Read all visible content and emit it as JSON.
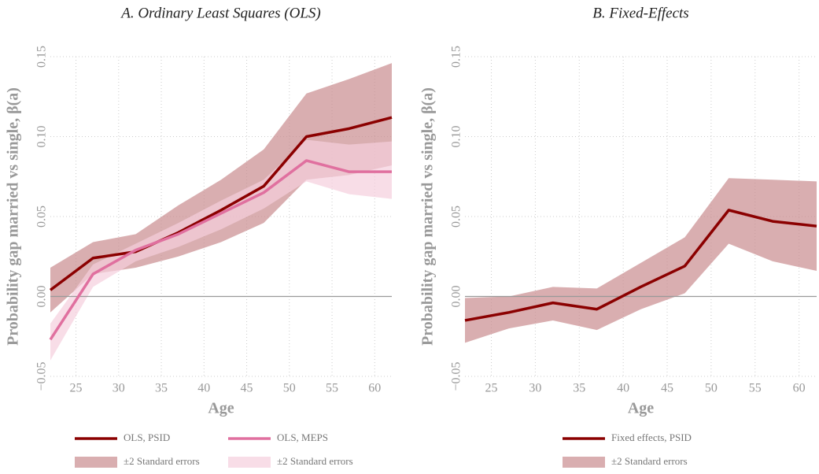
{
  "chart_data": [
    {
      "type": "line",
      "title": "A. Ordinary Least Squares (OLS)",
      "xlabel": "Age",
      "ylabel": "Probability gap married vs single, β(a)",
      "x": [
        22,
        27,
        32,
        37,
        42,
        47,
        52,
        57,
        62
      ],
      "series": [
        {
          "name": "OLS, PSID",
          "color": "#8b0000",
          "values": [
            0.004,
            0.024,
            0.028,
            0.04,
            0.054,
            0.069,
            0.1,
            0.105,
            0.112
          ],
          "band": {
            "name": "±2 Standard errors",
            "color": "#c98b8e",
            "upper": [
              0.018,
              0.034,
              0.039,
              0.057,
              0.073,
              0.092,
              0.127,
              0.136,
              0.146
            ],
            "lower": [
              -0.01,
              0.014,
              0.018,
              0.025,
              0.034,
              0.046,
              0.073,
              0.076,
              0.082
            ]
          }
        },
        {
          "name": "OLS, MEPS",
          "color": "#e0709f",
          "values": [
            -0.027,
            0.014,
            0.029,
            0.039,
            0.052,
            0.065,
            0.085,
            0.078,
            0.078
          ],
          "band": {
            "name": "±2 Standard errors",
            "color": "#f5cfdd",
            "upper": [
              -0.017,
              0.02,
              0.033,
              0.046,
              0.06,
              0.073,
              0.098,
              0.095,
              0.097
            ],
            "lower": [
              -0.04,
              0.006,
              0.022,
              0.031,
              0.042,
              0.055,
              0.072,
              0.064,
              0.061
            ]
          }
        }
      ],
      "xlim": [
        22,
        62
      ],
      "xticks": [
        25,
        30,
        35,
        40,
        45,
        50,
        55,
        60
      ],
      "ylim": [
        -0.05,
        0.15
      ],
      "yticks": [
        {
          "value": -0.05,
          "label": "−0.05"
        },
        {
          "value": 0,
          "label": "0.00"
        },
        0.05,
        {
          "value": 0.1,
          "label": "0.10"
        },
        0.15
      ],
      "grid": true,
      "zero_line": true
    },
    {
      "type": "line",
      "title": "B. Fixed-Effects",
      "xlabel": "Age",
      "ylabel": "Probability gap married vs single, β(a)",
      "x": [
        22,
        27,
        32,
        37,
        42,
        47,
        52,
        57,
        62
      ],
      "series": [
        {
          "name": "Fixed effects, PSID",
          "color": "#8b0000",
          "values": [
            -0.015,
            -0.01,
            -0.004,
            -0.008,
            0.006,
            0.019,
            0.054,
            0.047,
            0.044
          ],
          "band": {
            "name": "±2 Standard errors",
            "color": "#c98b8e",
            "upper": [
              -0.001,
              0.0,
              0.006,
              0.005,
              0.021,
              0.037,
              0.074,
              0.073,
              0.072
            ],
            "lower": [
              -0.029,
              -0.02,
              -0.015,
              -0.021,
              -0.008,
              0.002,
              0.033,
              0.022,
              0.016
            ]
          }
        }
      ],
      "xlim": [
        22,
        62
      ],
      "xticks": [
        25,
        30,
        35,
        40,
        45,
        50,
        55,
        60
      ],
      "ylim": [
        -0.05,
        0.15
      ],
      "yticks": [
        {
          "value": -0.05,
          "label": "−0.05"
        },
        {
          "value": 0,
          "label": "0.00"
        },
        0.05,
        {
          "value": 0.1,
          "label": "0.10"
        },
        0.15
      ],
      "grid": true,
      "zero_line": true
    }
  ]
}
